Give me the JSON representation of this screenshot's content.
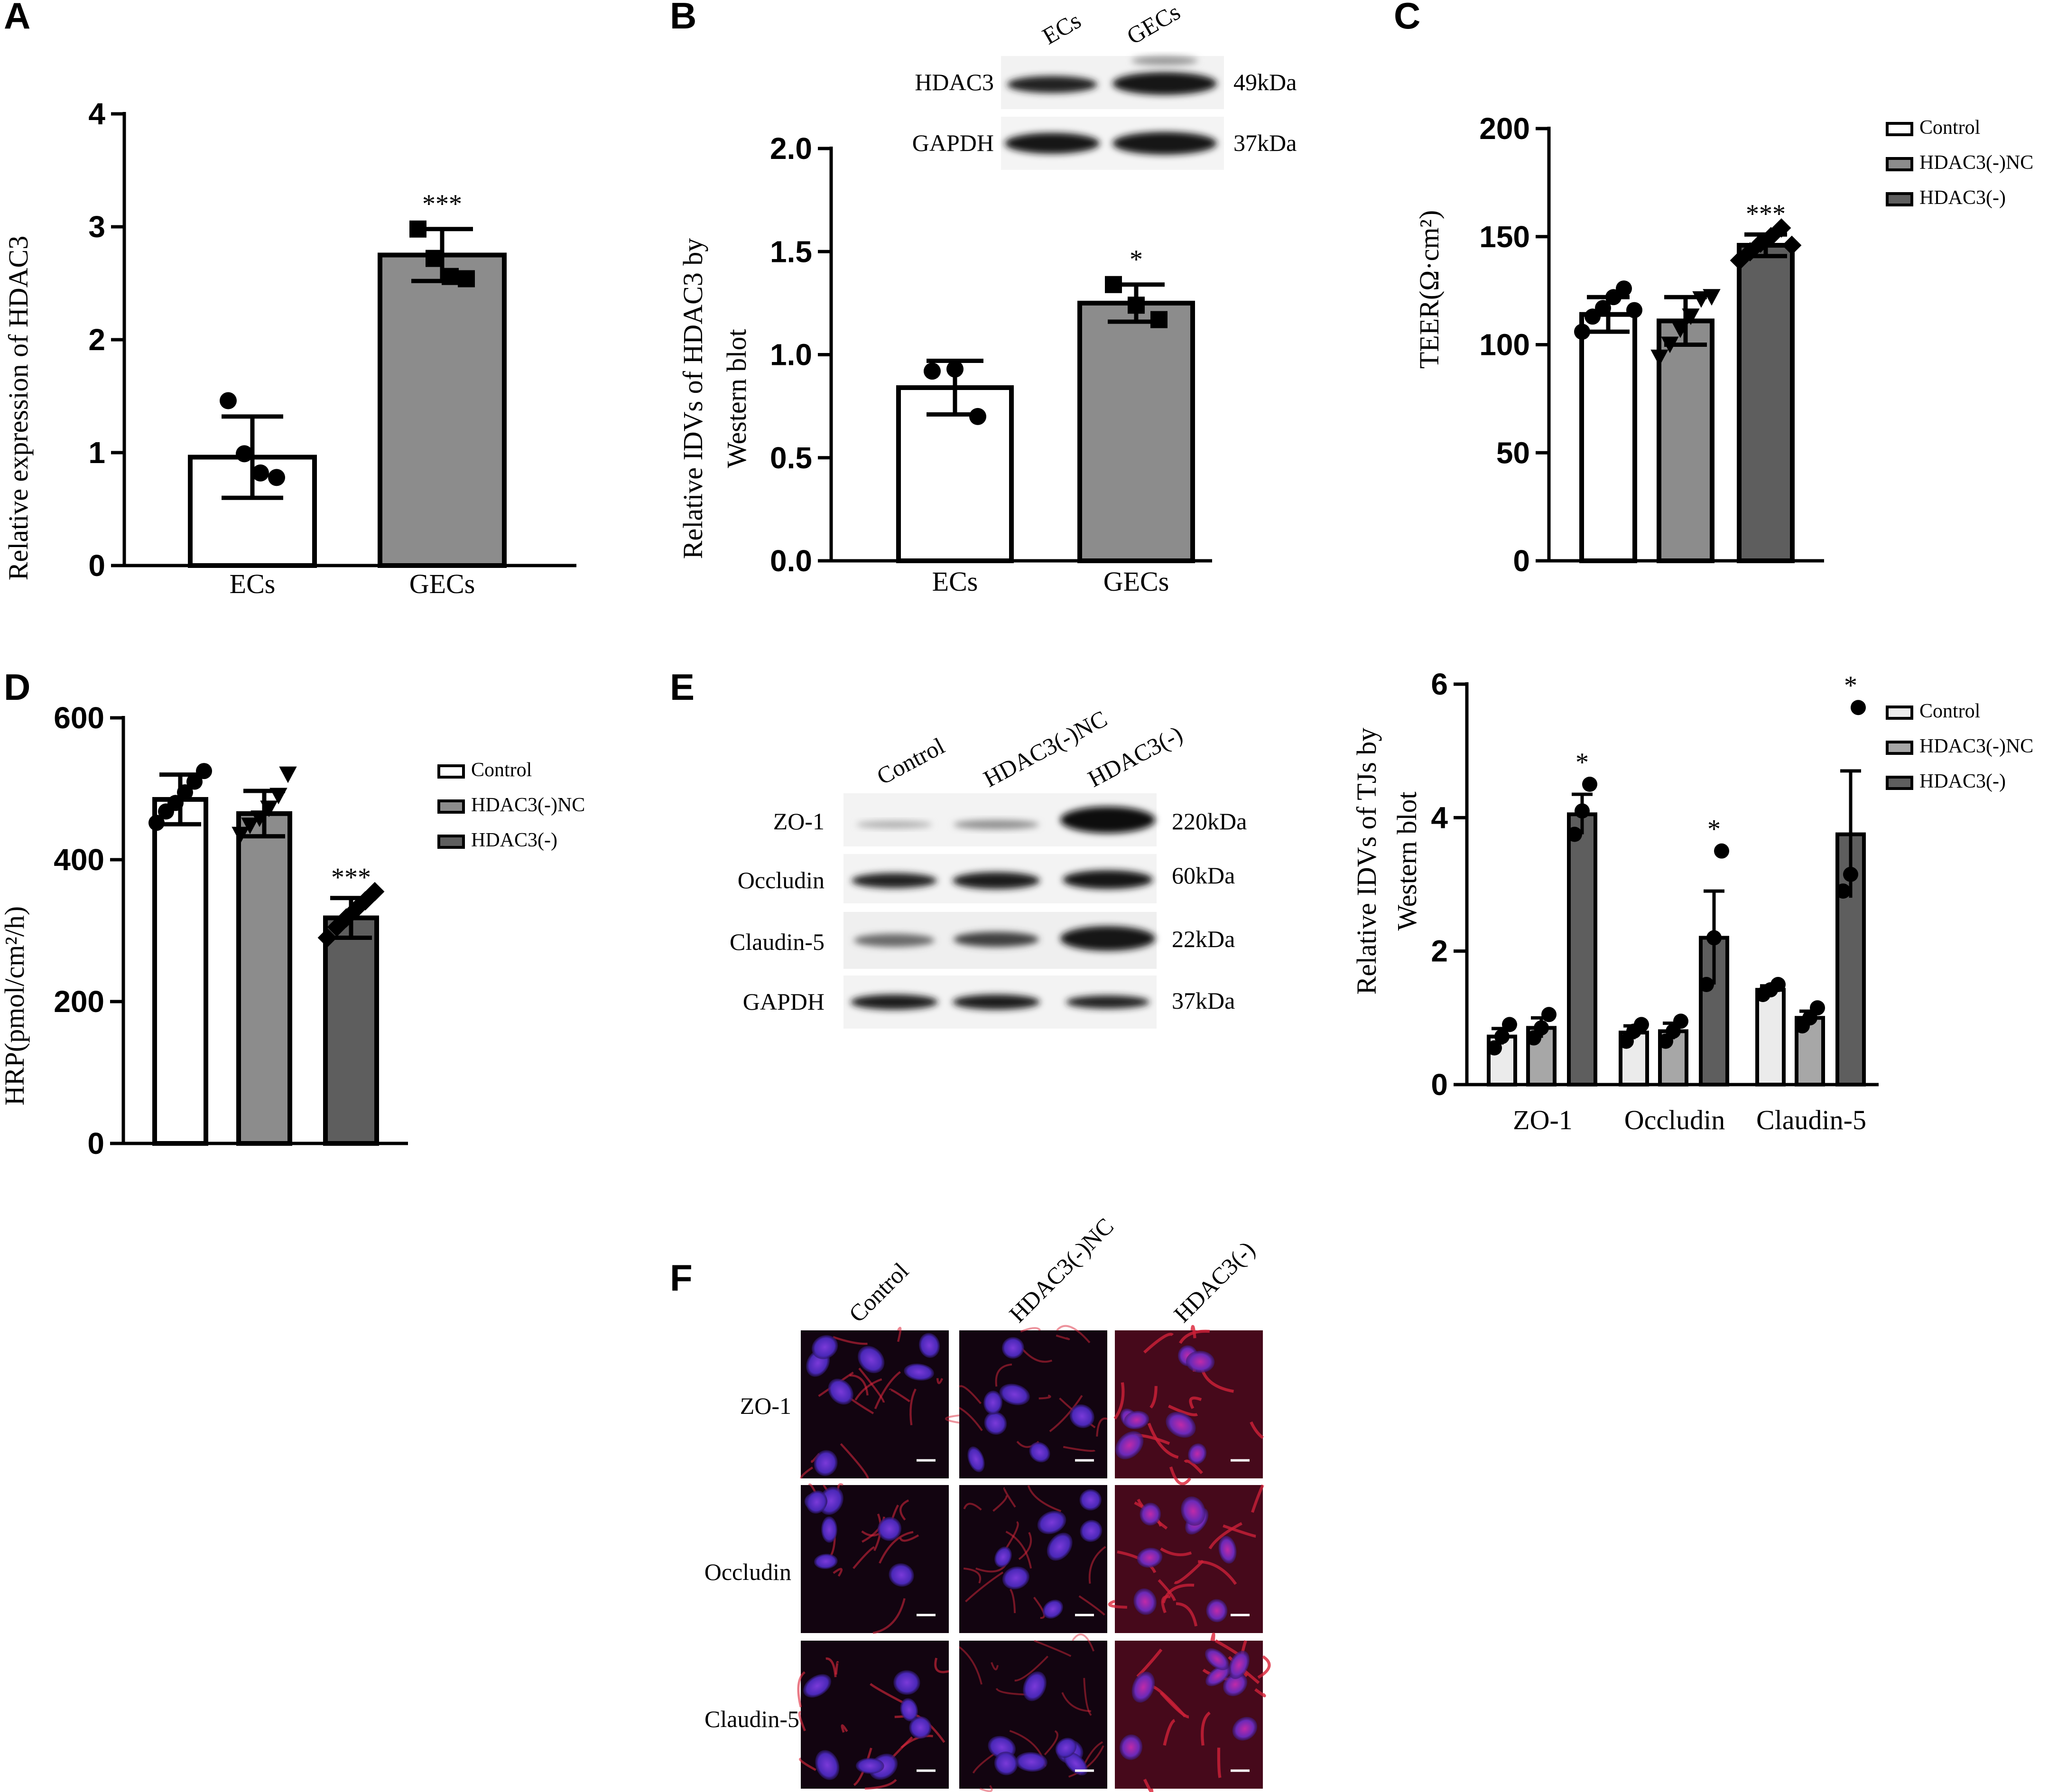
{
  "panels": {
    "A": "A",
    "B": "B",
    "C": "C",
    "D": "D",
    "E": "E",
    "F": "F"
  },
  "colors": {
    "control": "#ffffff",
    "nc": "#8c8c8c",
    "kd": "#5e5e5e",
    "gecs": "#8c8c8c",
    "e_control": "#ebebeb",
    "e_nc": "#a7a7a7",
    "e_kd": "#5e5e5e"
  },
  "chart_data": [
    {
      "panel": "A",
      "type": "bar",
      "categories": [
        "ECs",
        "GECs"
      ],
      "values": [
        0.96,
        2.75
      ],
      "error": [
        0.36,
        0.23
      ],
      "points": [
        [
          1.46,
          0.99,
          0.82,
          0.78
        ],
        [
          2.98,
          2.72,
          2.56,
          2.54
        ]
      ],
      "marker": [
        "circle",
        "square"
      ],
      "ylabel": "Relative expression of HDAC3",
      "ylim": [
        0,
        4
      ],
      "yticks": [
        "0",
        "1",
        "2",
        "3",
        "4"
      ],
      "significance": [
        "",
        "***"
      ]
    },
    {
      "panel": "B",
      "type": "bar",
      "categories": [
        "ECs",
        "GECs"
      ],
      "values": [
        0.84,
        1.25
      ],
      "error": [
        0.13,
        0.09
      ],
      "points": [
        [
          0.92,
          0.93,
          0.7
        ],
        [
          1.34,
          1.24,
          1.17
        ]
      ],
      "marker": [
        "circle",
        "square"
      ],
      "ylabel": [
        "Relative IDVs of  HDAC3 by",
        "Western blot"
      ],
      "ylim": [
        0,
        2
      ],
      "yticks": [
        "0.0",
        "0.5",
        "1.0",
        "1.5",
        "2.0"
      ],
      "significance": [
        "",
        "*"
      ]
    },
    {
      "panel": "C",
      "type": "bar",
      "categories": [
        "Control",
        "HDAC3(-)NC",
        "HDAC3(-)"
      ],
      "values": [
        114,
        111,
        146
      ],
      "error": [
        8,
        11,
        5
      ],
      "points": [
        [
          106,
          113,
          117,
          122,
          126,
          116
        ],
        [
          94,
          100,
          107,
          113,
          121,
          122
        ],
        [
          139,
          143,
          147,
          150,
          154,
          146
        ]
      ],
      "marker": [
        "circle",
        "triangle-down",
        "diamond"
      ],
      "ylabel": "TEER(Ω·cm²)",
      "ylim": [
        0,
        200
      ],
      "yticks": [
        "0",
        "50",
        "100",
        "150",
        "200"
      ],
      "significance": [
        "",
        "",
        "***"
      ],
      "legend": [
        "Control",
        "HDAC3(-)NC",
        "HDAC3(-)"
      ]
    },
    {
      "panel": "D",
      "type": "bar",
      "categories": [
        "Control",
        "HDAC3(-)NC",
        "HDAC3(-)"
      ],
      "values": [
        485,
        465,
        318
      ],
      "error": [
        35,
        32,
        28
      ],
      "points": [
        [
          452,
          468,
          480,
          495,
          510,
          525
        ],
        [
          435,
          448,
          458,
          472,
          490,
          520
        ],
        [
          290,
          305,
          318,
          330,
          342,
          355
        ]
      ],
      "marker": [
        "circle",
        "triangle-down",
        "diamond"
      ],
      "ylabel": "HRP(pmol/cm²/h)",
      "ylim": [
        0,
        600
      ],
      "yticks": [
        "0",
        "200",
        "400",
        "600"
      ],
      "significance": [
        "",
        "",
        "***"
      ],
      "legend": [
        "Control",
        "HDAC3(-)NC",
        "HDAC3(-)"
      ]
    },
    {
      "panel": "E",
      "type": "bar",
      "categories": [
        "ZO-1",
        "Occludin",
        "Claudin-5"
      ],
      "series": [
        {
          "name": "Control",
          "values": [
            0.72,
            0.78,
            1.42
          ],
          "error": [
            0.12,
            0.1,
            0.06
          ],
          "points": [
            [
              0.55,
              0.72,
              0.9
            ],
            [
              0.65,
              0.8,
              0.9
            ],
            [
              1.35,
              1.42,
              1.5
            ]
          ]
        },
        {
          "name": "HDAC3(-)NC",
          "values": [
            0.85,
            0.8,
            1.0
          ],
          "error": [
            0.15,
            0.12,
            0.1
          ],
          "points": [
            [
              0.7,
              0.85,
              1.05
            ],
            [
              0.65,
              0.8,
              0.95
            ],
            [
              0.88,
              1.0,
              1.15
            ]
          ]
        },
        {
          "name": "HDAC3(-)",
          "values": [
            4.05,
            2.2,
            3.75
          ],
          "error": [
            0.3,
            0.7,
            0.95
          ],
          "points": [
            [
              3.75,
              4.1,
              4.5
            ],
            [
              1.5,
              2.2,
              3.5
            ],
            [
              2.9,
              3.15,
              5.65
            ]
          ]
        }
      ],
      "ylabel": [
        "Relative IDVs of  TJs by",
        "Western blot"
      ],
      "ylim": [
        0,
        6
      ],
      "yticks": [
        "0",
        "2",
        "4",
        "6"
      ],
      "significance": [
        "*",
        "*",
        "*"
      ]
    }
  ],
  "blot_B": {
    "lanes": [
      "ECs",
      "GECs"
    ],
    "rows": [
      {
        "label": "HDAC3",
        "kda": "49kDa"
      },
      {
        "label": "GAPDH",
        "kda": "37kDa"
      }
    ]
  },
  "blot_E": {
    "lanes": [
      "Control",
      "HDAC3(-)NC",
      "HDAC3(-)"
    ],
    "rows": [
      {
        "label": "ZO-1",
        "kda": "220kDa"
      },
      {
        "label": "Occludin",
        "kda": "60kDa"
      },
      {
        "label": "Claudin-5",
        "kda": "22kDa"
      },
      {
        "label": "GAPDH",
        "kda": "37kDa"
      }
    ]
  },
  "panel_F": {
    "columns": [
      "Control",
      "HDAC3(-)NC",
      "HDAC3(-)"
    ],
    "rows": [
      "ZO-1",
      "Occludin",
      "Claudin-5"
    ]
  }
}
